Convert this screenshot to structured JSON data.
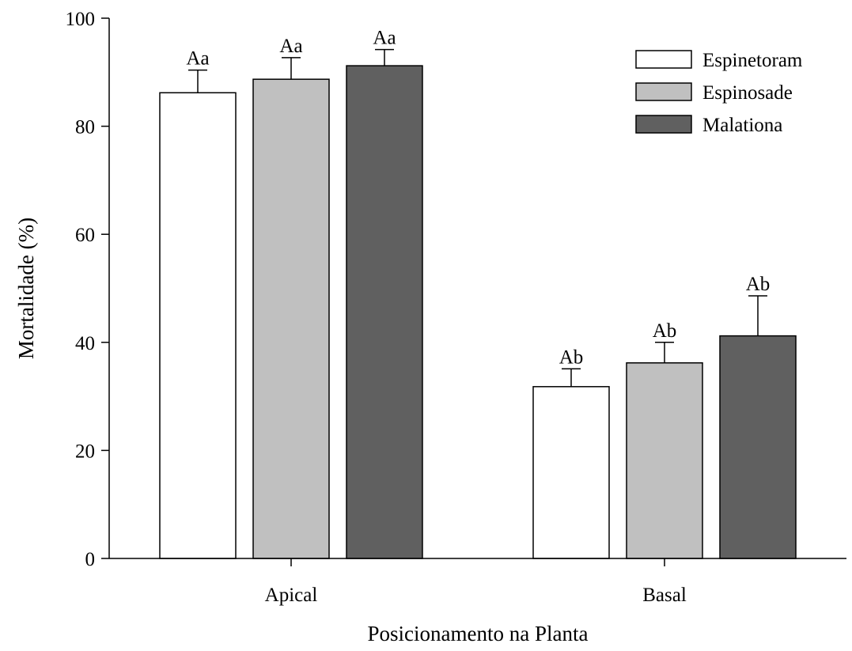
{
  "chart_data": {
    "type": "bar",
    "title": "",
    "xlabel": "Posicionamento na Planta",
    "ylabel": "Mortalidade (%)",
    "ylim": [
      0,
      100
    ],
    "yticks": [
      0,
      20,
      40,
      60,
      80,
      100
    ],
    "categories": [
      "Apical",
      "Basal"
    ],
    "series": [
      {
        "name": "Espinetoram",
        "color": "#ffffff",
        "values": [
          86.2,
          31.8
        ],
        "errors": [
          4.2,
          3.3
        ],
        "labels": [
          "Aa",
          "Ab"
        ]
      },
      {
        "name": "Espinosade",
        "color": "#c0c0c0",
        "values": [
          88.7,
          36.2
        ],
        "errors": [
          4.0,
          3.8
        ],
        "labels": [
          "Aa",
          "Ab"
        ]
      },
      {
        "name": "Malationa",
        "color": "#606060",
        "values": [
          91.2,
          41.2
        ],
        "errors": [
          3.0,
          7.4
        ],
        "labels": [
          "Aa",
          "Ab"
        ]
      }
    ],
    "legend_position": "top-right",
    "grid": false
  }
}
